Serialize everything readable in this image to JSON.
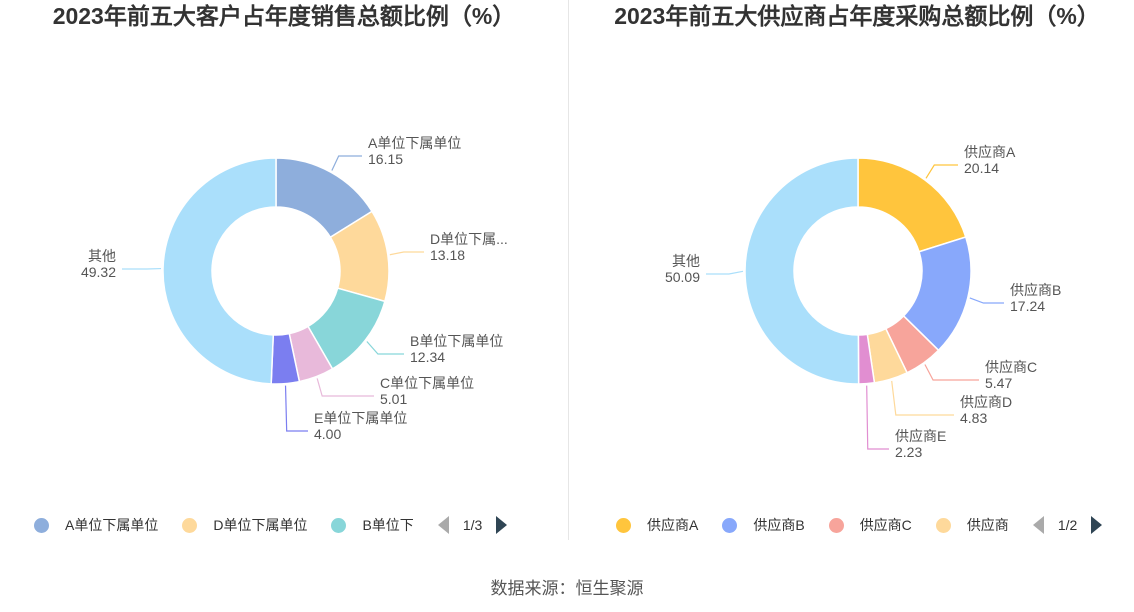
{
  "chart_data": [
    {
      "type": "pie",
      "title": "2023年前五大客户占年度销售总额比例（%）",
      "slices": [
        {
          "name": "A单位下属单位",
          "label": "A单位下属单位",
          "value": 16.15,
          "color": "#8eaedc"
        },
        {
          "name": "D单位下属单位",
          "label": "D单位下属...",
          "value": 13.18,
          "color": "#fed99b"
        },
        {
          "name": "B单位下属单位",
          "label": "B单位下属单位",
          "value": 12.34,
          "color": "#88d6d9"
        },
        {
          "name": "C单位下属单位",
          "label": "C单位下属单位",
          "value": 5.01,
          "color": "#e8b9da"
        },
        {
          "name": "E单位下属单位",
          "label": "E单位下属单位",
          "value": 4.0,
          "color": "#7b7ef0"
        },
        {
          "name": "其他",
          "label": "其他",
          "value": 49.32,
          "color": "#aadffb"
        }
      ],
      "legend": {
        "items": [
          {
            "name": "A单位下属单位",
            "color": "#8eaedc"
          },
          {
            "name": "D单位下属单位",
            "color": "#fed99b"
          },
          {
            "name": "B单位下",
            "color": "#88d6d9"
          }
        ],
        "page": "1/3"
      }
    },
    {
      "type": "pie",
      "title": "2023年前五大供应商占年度采购总额比例（%）",
      "slices": [
        {
          "name": "供应商A",
          "label": "供应商A",
          "value": 20.14,
          "color": "#ffc53d"
        },
        {
          "name": "供应商B",
          "label": "供应商B",
          "value": 17.24,
          "color": "#88a8fb"
        },
        {
          "name": "供应商C",
          "label": "供应商C",
          "value": 5.47,
          "color": "#f7a49b"
        },
        {
          "name": "供应商D",
          "label": "供应商D",
          "value": 4.83,
          "color": "#fed99b"
        },
        {
          "name": "供应商E",
          "label": "供应商E",
          "value": 2.23,
          "color": "#e18ed1"
        },
        {
          "name": "其他",
          "label": "其他",
          "value": 50.09,
          "color": "#aadffb"
        }
      ],
      "legend": {
        "items": [
          {
            "name": "供应商A",
            "color": "#ffc53d"
          },
          {
            "name": "供应商B",
            "color": "#88a8fb"
          },
          {
            "name": "供应商C",
            "color": "#f7a49b"
          },
          {
            "name": "供应商",
            "color": "#fed99b"
          }
        ],
        "page": "1/2"
      }
    }
  ],
  "source": "数据来源：恒生聚源"
}
